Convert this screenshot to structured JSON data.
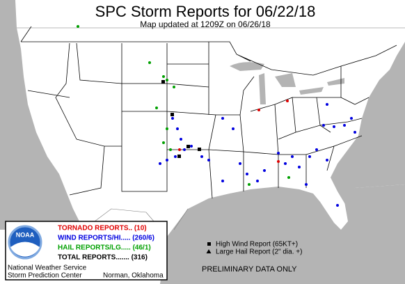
{
  "header": {
    "title": "SPC Storm Reports for 06/22/18",
    "subtitle": "Map updated at 1209Z on 06/26/18"
  },
  "legend": {
    "logo": "NOAA",
    "items": [
      {
        "label": "TORNADO REPORTS.. (10)",
        "color": "#e00000"
      },
      {
        "label": "WIND REPORTS/HI..... (260/6)",
        "color": "#0000e0"
      },
      {
        "label": "HAIL REPORTS/LG..... (46/1)",
        "color": "#00a000"
      },
      {
        "label": "TOTAL REPORTS....... (316)",
        "color": "#000000"
      }
    ],
    "office": "National Weather Service",
    "center": "Storm Prediction Center",
    "place": "Norman, Oklahoma"
  },
  "key": {
    "items": [
      "High Wind Report (65KT+)",
      "Large Hail Report (2\" dia. +)"
    ]
  },
  "notice": "PRELIMINARY DATA ONLY"
}
